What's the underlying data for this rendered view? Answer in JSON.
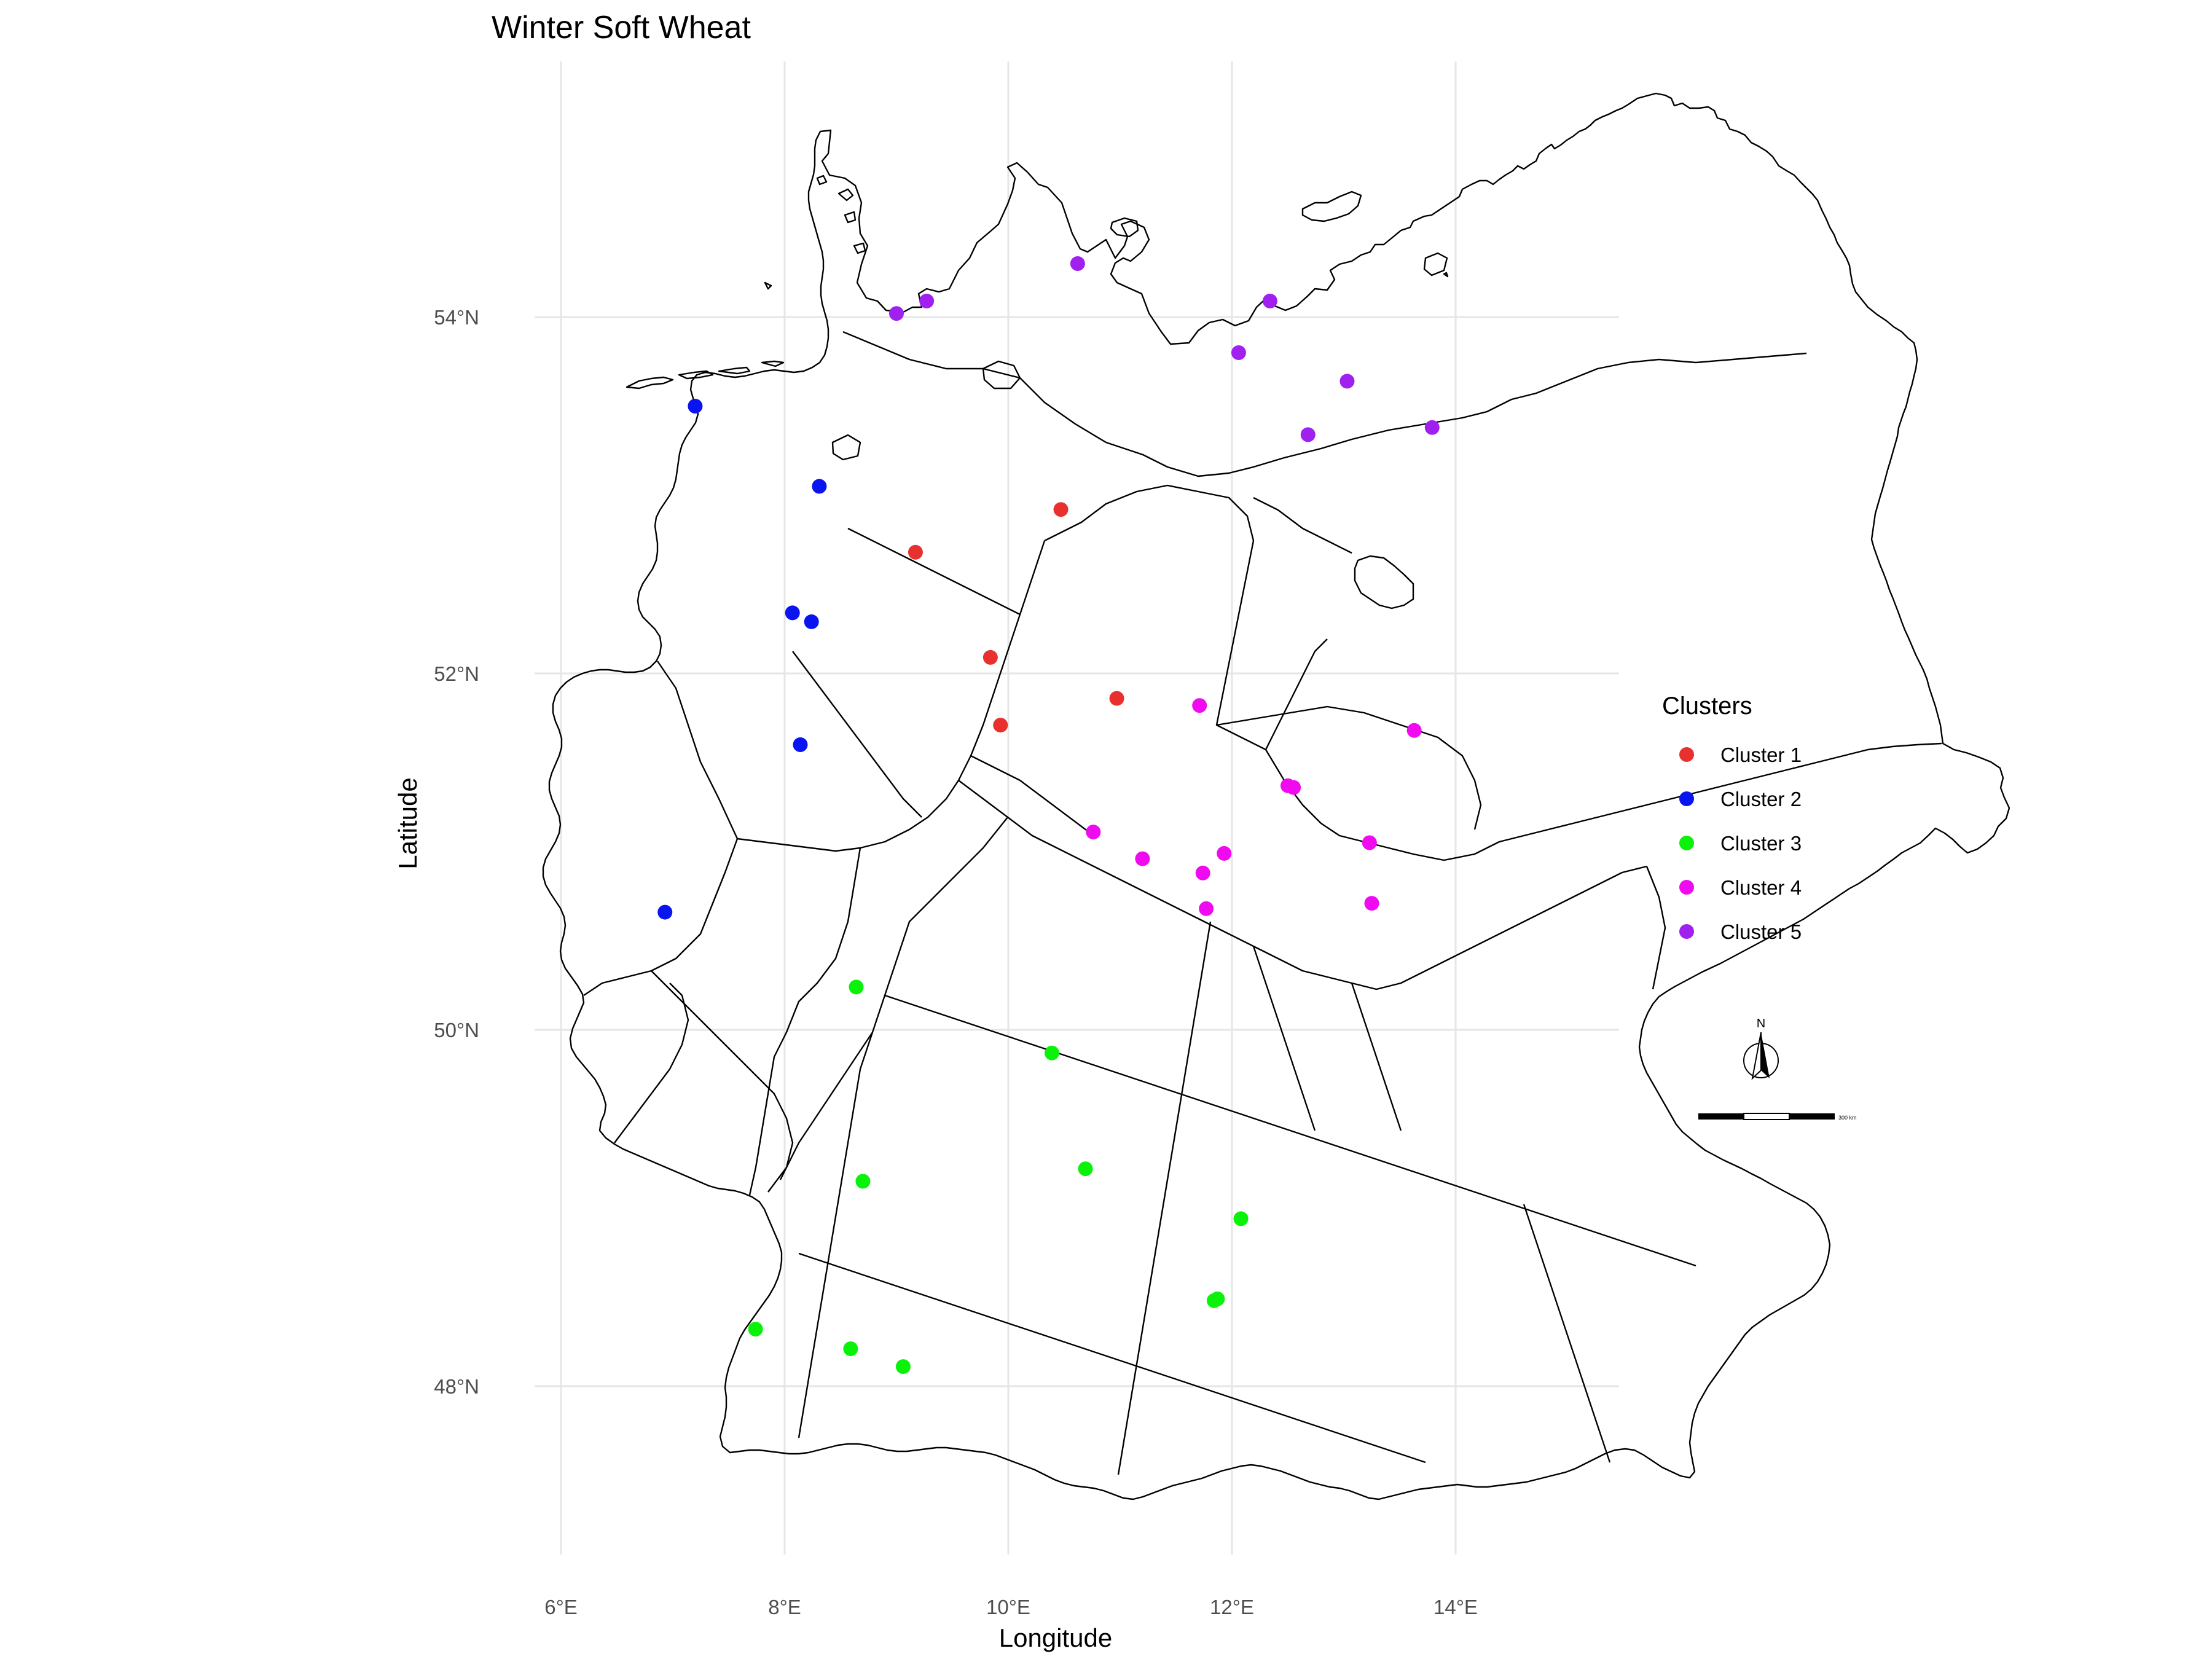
{
  "chart_data": {
    "type": "scatter",
    "title": "Winter Soft Wheat",
    "xlabel": "Longitude",
    "ylabel": "Latitude",
    "xlim": [
      5.5,
      15.5
    ],
    "ylim": [
      46.8,
      55.5
    ],
    "x_ticks": [
      {
        "value": 6,
        "label": "6°E"
      },
      {
        "value": 8,
        "label": "8°E"
      },
      {
        "value": 10,
        "label": "10°E"
      },
      {
        "value": 12,
        "label": "12°E"
      },
      {
        "value": 14,
        "label": "14°E"
      }
    ],
    "y_ticks": [
      {
        "value": 48,
        "label": "48°N"
      },
      {
        "value": 50,
        "label": "50°N"
      },
      {
        "value": 52,
        "label": "52°N"
      },
      {
        "value": 54,
        "label": "54°N"
      }
    ],
    "grid": true,
    "legend_position": "right",
    "legend_title": "Clusters",
    "series": [
      {
        "name": "Cluster 1",
        "color": "#e8312e",
        "points": [
          [
            10.47,
            52.92
          ],
          [
            9.17,
            52.68
          ],
          [
            9.84,
            52.09
          ],
          [
            9.93,
            51.71
          ],
          [
            10.97,
            51.86
          ]
        ]
      },
      {
        "name": "Cluster 2",
        "color": "#0a14f0",
        "points": [
          [
            7.2,
            53.5
          ],
          [
            8.31,
            53.05
          ],
          [
            8.07,
            52.34
          ],
          [
            8.24,
            52.29
          ],
          [
            8.14,
            51.6
          ],
          [
            6.93,
            50.66
          ]
        ]
      },
      {
        "name": "Cluster 3",
        "color": "#0af20a",
        "points": [
          [
            8.64,
            50.24
          ],
          [
            10.39,
            49.87
          ],
          [
            8.7,
            49.15
          ],
          [
            10.69,
            49.22
          ],
          [
            12.08,
            48.94
          ],
          [
            11.87,
            48.49
          ],
          [
            11.84,
            48.48
          ],
          [
            7.74,
            48.32
          ],
          [
            8.59,
            48.21
          ],
          [
            9.06,
            48.11
          ]
        ]
      },
      {
        "name": "Cluster 4",
        "color": "#f00af0",
        "points": [
          [
            11.71,
            51.82
          ],
          [
            13.63,
            51.68
          ],
          [
            12.5,
            51.37
          ],
          [
            12.55,
            51.36
          ],
          [
            10.76,
            51.11
          ],
          [
            13.23,
            51.05
          ],
          [
            11.93,
            50.99
          ],
          [
            11.2,
            50.96
          ],
          [
            11.74,
            50.88
          ],
          [
            11.77,
            50.68
          ],
          [
            13.25,
            50.71
          ]
        ]
      },
      {
        "name": "Cluster 5",
        "color": "#a020f0",
        "points": [
          [
            10.62,
            54.3
          ],
          [
            9.27,
            54.09
          ],
          [
            9.0,
            54.02
          ],
          [
            12.34,
            54.09
          ],
          [
            12.06,
            53.8
          ],
          [
            13.03,
            53.64
          ],
          [
            12.68,
            53.34
          ],
          [
            13.79,
            53.38
          ]
        ]
      }
    ],
    "map_outline": "Germany federal state and district boundaries",
    "north_arrow": "N",
    "scale_bar": "300 km"
  }
}
